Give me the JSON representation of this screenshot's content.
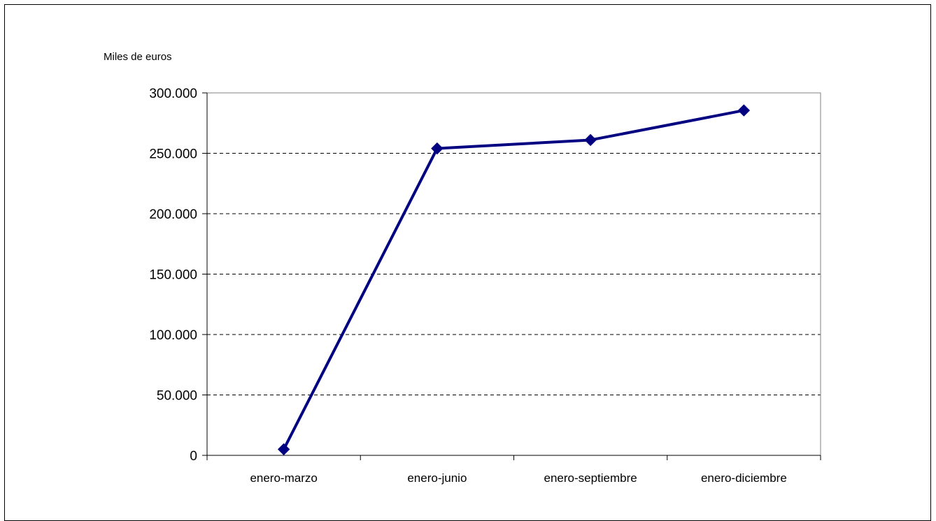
{
  "chart_data": {
    "type": "line",
    "title": "",
    "xlabel": "",
    "ylabel": "Miles de euros",
    "categories": [
      "enero-marzo",
      "enero-junio",
      "enero-septiembre",
      "enero-diciembre"
    ],
    "series": [
      {
        "values": [
          5000,
          254000,
          261000,
          285500
        ],
        "color": "#000080",
        "marker": "diamond"
      }
    ],
    "ylim": [
      0,
      300000
    ],
    "yticks": [
      0,
      50000,
      100000,
      150000,
      200000,
      250000,
      300000
    ],
    "ytick_labels": [
      "0",
      "50.000",
      "100.000",
      "150.000",
      "200.000",
      "250.000",
      "300.000"
    ],
    "grid": "horizontal dashed",
    "legend": "none"
  }
}
